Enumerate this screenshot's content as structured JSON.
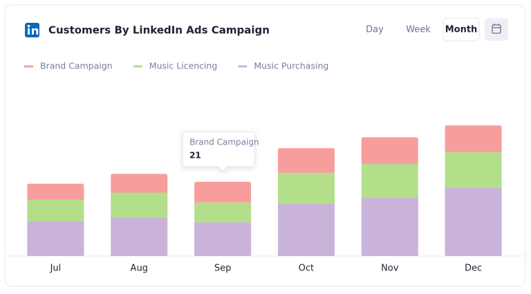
{
  "chart_data": {
    "type": "bar",
    "stacked": true,
    "title": "Customers By LinkedIn Ads Campaign",
    "categories": [
      "Jul",
      "Aug",
      "Sep",
      "Oct",
      "Nov",
      "Dec"
    ],
    "series": [
      {
        "name": "Brand Campaign",
        "color": "#f79e9d",
        "values": [
          16,
          19,
          21,
          25,
          27,
          27
        ]
      },
      {
        "name": "Music Licencing",
        "color": "#b3df8b",
        "values": [
          22,
          25,
          20,
          31,
          34,
          36
        ]
      },
      {
        "name": "Music Purchasing",
        "color": "#c9b3d9",
        "values": [
          35,
          39,
          34,
          53,
          59,
          69
        ]
      }
    ],
    "tooltip": {
      "series": 0,
      "index": 2
    }
  },
  "controls": {
    "options": [
      "Day",
      "Week",
      "Month"
    ],
    "selected_index": 2
  }
}
